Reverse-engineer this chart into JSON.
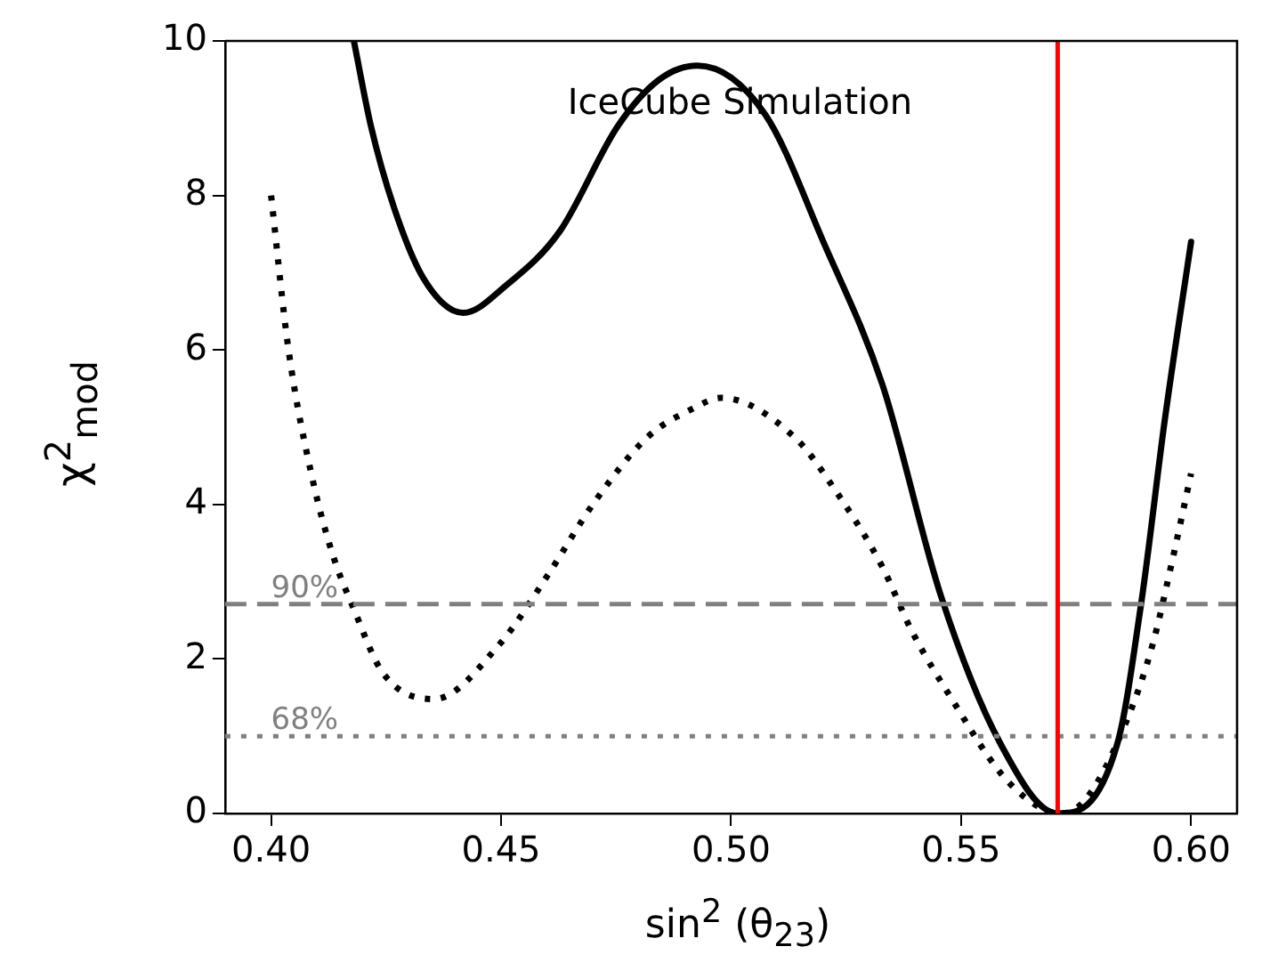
{
  "chart_data": {
    "type": "line",
    "xlabel": "sin$^{2}$ (θ$_{23}$)",
    "ylabel": "χ$^{2}$$_{mod}$",
    "annotations": [
      "IceCube Simulation",
      {
        "text": "90%",
        "x": 0.4,
        "y": 2.71
      },
      {
        "text": "68%",
        "x": 0.4,
        "y": 1
      }
    ],
    "xlim": [
      0.39,
      0.61
    ],
    "ylim": [
      0,
      10
    ],
    "xticks": [
      {
        "value": 0.4,
        "label": "0.40"
      },
      {
        "value": 0.45,
        "label": "0.45"
      },
      {
        "value": 0.5,
        "label": "0.50"
      },
      {
        "value": 0.55,
        "label": "0.55"
      },
      {
        "value": 0.6,
        "label": "0.60"
      }
    ],
    "yticks": [
      0,
      2,
      4,
      6,
      8,
      10
    ],
    "grid": false,
    "legend": false,
    "marker": "none",
    "series": [
      {
        "color": "#000000",
        "line_style": "solid",
        "x": [
          0.418,
          0.4217,
          0.4268,
          0.4332,
          0.4418,
          0.4512,
          0.4627,
          0.4754,
          0.4844,
          0.4927,
          0.5074,
          0.5202,
          0.5329,
          0.5456,
          0.5585,
          0.5709,
          0.584,
          0.5892,
          0.5943,
          0.6
        ],
        "values": [
          10,
          8.9,
          7.83,
          6.92,
          6.48,
          6.84,
          7.53,
          8.9,
          9.5,
          9.68,
          9.05,
          7.38,
          5.55,
          2.82,
          0.91,
          0,
          0.91,
          2.74,
          5.1,
          7.4
        ]
      },
      {
        "color": "#000000",
        "line_style": "dotted",
        "x": [
          0.4,
          0.4038,
          0.409,
          0.4134,
          0.4179,
          0.4243,
          0.4354,
          0.4498,
          0.4601,
          0.4703,
          0.4818,
          0.492,
          0.4978,
          0.5138,
          0.5227,
          0.5329,
          0.5393,
          0.5483,
          0.5585,
          0.5662,
          0.572,
          0.5777,
          0.5866,
          0.5917,
          0.5956,
          0.6
        ],
        "values": [
          8,
          6,
          4.33,
          3.35,
          2.66,
          1.82,
          1.48,
          2.2,
          3.08,
          4.03,
          4.87,
          5.25,
          5.38,
          4.87,
          4.18,
          3.19,
          2.36,
          1.45,
          0.53,
          0.11,
          0,
          0.23,
          1.29,
          2.2,
          3.19,
          4.4
        ]
      }
    ],
    "ref_lines": [
      {
        "axis": "y",
        "value": 2.71,
        "color": "#808080",
        "line_style": "dashed"
      },
      {
        "axis": "y",
        "value": 1,
        "color": "#808080",
        "line_style": "dotted"
      },
      {
        "axis": "x",
        "value": 0.571,
        "color": "#ff0000",
        "line_style": "solid"
      }
    ]
  }
}
